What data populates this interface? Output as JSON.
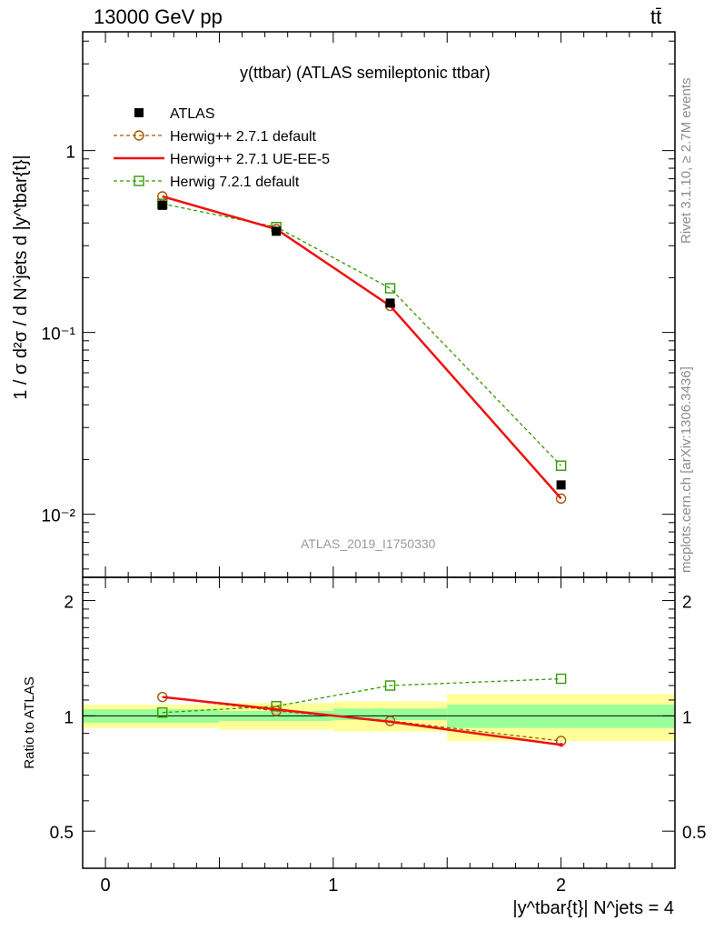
{
  "header": {
    "energy_label": "13000 GeV pp",
    "process_label": "tt̄"
  },
  "side_notes": {
    "rivet": "Rivet 3.1.10, ≥ 2.7M events",
    "mcplots": "mcplots.cern.ch [arXiv:1306.3436]"
  },
  "chart_data": [
    {
      "panel": "main",
      "type": "scatter",
      "title": "y(ttbar) (ATLAS semileptonic ttbar)",
      "watermark": "ATLAS_2019_I1750330",
      "ylabel": "1 / σ d²σ / d N^jets d |y^tbar{t}|",
      "yscale": "log",
      "xlim": [
        -0.1,
        2.5
      ],
      "ylim": [
        0.0045,
        4.5
      ],
      "y_tick_labels": [
        "10⁻²",
        "10⁻¹",
        "1"
      ],
      "x_centers": [
        0.25,
        0.75,
        1.25,
        2.0
      ],
      "x_bin_edges": [
        0,
        0.5,
        1.0,
        1.5,
        2.5
      ],
      "legend_position": "top-left",
      "series": [
        {
          "name": "ATLAS",
          "marker": "filled-square",
          "color": "#000000",
          "values": [
            0.5,
            0.36,
            0.145,
            0.0145
          ]
        },
        {
          "name": "Herwig++ 2.7.1 default",
          "marker": "open-circle",
          "line": "dashed",
          "color": "#a05a00",
          "values": [
            0.56,
            0.37,
            0.14,
            0.0122
          ]
        },
        {
          "name": "Herwig++ 2.7.1 UE-EE-5",
          "marker": "none",
          "line": "solid",
          "color": "#ee1111",
          "values": [
            0.56,
            0.37,
            0.14,
            0.0122
          ]
        },
        {
          "name": "Herwig 7.2.1 default",
          "marker": "open-square",
          "line": "dashed",
          "color": "#339900",
          "values": [
            0.51,
            0.38,
            0.175,
            0.0185
          ]
        }
      ]
    },
    {
      "panel": "ratio",
      "type": "line",
      "ylabel": "Ratio to ATLAS",
      "xlabel": "|y^tbar{t}| N^jets = 4",
      "xlim": [
        -0.1,
        2.5
      ],
      "ylim": [
        0.4,
        2.3
      ],
      "yscale": "log",
      "x_tick_labels": [
        "0",
        "1",
        "2"
      ],
      "y_tick_labels": [
        "0.5",
        "1",
        "2"
      ],
      "bands": {
        "bins": [
          [
            -0.1,
            0.5
          ],
          [
            0.5,
            1.0
          ],
          [
            1.0,
            1.5
          ],
          [
            1.5,
            2.5
          ]
        ],
        "stat_color": "#99ff99",
        "total_color": "#ffff99",
        "stat": [
          [
            0.96,
            1.04
          ],
          [
            0.97,
            1.03
          ],
          [
            0.975,
            1.045
          ],
          [
            0.93,
            1.07
          ]
        ],
        "total": [
          [
            0.93,
            1.07
          ],
          [
            0.92,
            1.08
          ],
          [
            0.91,
            1.09
          ],
          [
            0.86,
            1.14
          ]
        ]
      },
      "series": [
        {
          "name": "Herwig++ 2.7.1 default",
          "marker": "open-circle",
          "line": "dashed",
          "color": "#a05a00",
          "x": [
            0.25,
            0.75,
            1.25,
            2.0
          ],
          "values": [
            1.12,
            1.03,
            0.97,
            0.86
          ]
        },
        {
          "name": "Herwig++ 2.7.1 UE-EE-5",
          "marker": "none",
          "line": "solid",
          "color": "#ee1111",
          "x": [
            0.25,
            0.75,
            1.25,
            2.0
          ],
          "values": [
            1.12,
            1.04,
            0.965,
            0.84
          ]
        },
        {
          "name": "Herwig 7.2.1 default",
          "marker": "open-square",
          "line": "dashed",
          "color": "#339900",
          "x": [
            0.25,
            0.75,
            1.25,
            2.0
          ],
          "values": [
            1.02,
            1.06,
            1.2,
            1.25
          ]
        }
      ]
    }
  ]
}
